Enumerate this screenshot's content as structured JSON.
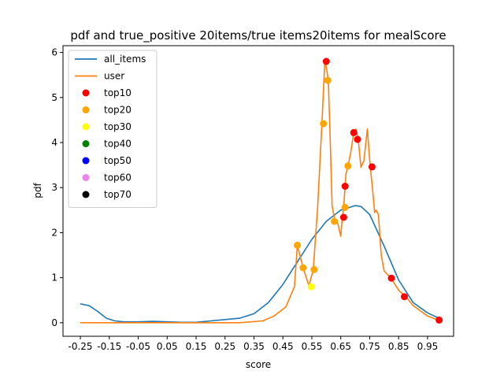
{
  "chart_data": {
    "type": "line",
    "title": "pdf and true_positive 20items/true items20items for mealScore",
    "xlabel": "score",
    "ylabel": "pdf",
    "xlim": [
      -0.31,
      1.04
    ],
    "ylim": [
      -0.3,
      6.15
    ],
    "xticks": [
      "-0.25",
      "-0.15",
      "-0.05",
      "0.05",
      "0.15",
      "0.25",
      "0.35",
      "0.45",
      "0.55",
      "0.65",
      "0.75",
      "0.85",
      "0.95"
    ],
    "yticks": [
      "0",
      "1",
      "2",
      "3",
      "4",
      "5",
      "6"
    ],
    "grid": false,
    "legend_position": "top-left",
    "series": [
      {
        "name": "all_items",
        "color": "#1f77b4",
        "x": [
          -0.25,
          -0.22,
          -0.19,
          -0.16,
          -0.13,
          -0.1,
          -0.05,
          0.0,
          0.05,
          0.1,
          0.15,
          0.2,
          0.25,
          0.3,
          0.35,
          0.4,
          0.45,
          0.5,
          0.55,
          0.6,
          0.65,
          0.7,
          0.72,
          0.75,
          0.8,
          0.85,
          0.9,
          0.95,
          0.99
        ],
        "y": [
          0.42,
          0.38,
          0.25,
          0.1,
          0.04,
          0.02,
          0.02,
          0.03,
          0.02,
          0.01,
          0.01,
          0.04,
          0.07,
          0.1,
          0.2,
          0.45,
          0.85,
          1.35,
          1.85,
          2.25,
          2.5,
          2.6,
          2.58,
          2.4,
          1.7,
          0.95,
          0.45,
          0.22,
          0.1
        ]
      },
      {
        "name": "user",
        "color": "#ff7f0e",
        "x": [
          -0.25,
          -0.1,
          0.0,
          0.1,
          0.2,
          0.3,
          0.38,
          0.42,
          0.46,
          0.49,
          0.5,
          0.52,
          0.54,
          0.555,
          0.57,
          0.585,
          0.595,
          0.602,
          0.607,
          0.613,
          0.62,
          0.63,
          0.64,
          0.65,
          0.655,
          0.66,
          0.668,
          0.675,
          0.685,
          0.695,
          0.702,
          0.71,
          0.72,
          0.73,
          0.742,
          0.752,
          0.758,
          0.767,
          0.772,
          0.78,
          0.79,
          0.8,
          0.825,
          0.85,
          0.875,
          0.9,
          0.95,
          0.99
        ],
        "y": [
          0.0,
          0.0,
          0.0,
          0.0,
          0.0,
          0.0,
          0.04,
          0.15,
          0.35,
          0.8,
          1.72,
          1.22,
          0.82,
          1.18,
          2.55,
          4.42,
          5.82,
          5.6,
          5.38,
          4.2,
          2.6,
          2.25,
          2.2,
          1.92,
          2.3,
          2.55,
          3.3,
          3.48,
          3.8,
          4.22,
          4.3,
          4.08,
          3.45,
          3.6,
          4.3,
          3.45,
          3.1,
          2.45,
          2.5,
          2.4,
          1.5,
          1.15,
          0.98,
          0.72,
          0.58,
          0.38,
          0.15,
          0.05
        ]
      }
    ],
    "scatter_series": [
      {
        "name": "top10",
        "color": "#ff0000",
        "points": [
          [
            0.6,
            5.8
          ],
          [
            0.695,
            4.22
          ],
          [
            0.708,
            4.07
          ],
          [
            0.66,
            2.34
          ],
          [
            0.665,
            3.03
          ],
          [
            0.758,
            3.46
          ],
          [
            0.825,
            0.99
          ],
          [
            0.87,
            0.58
          ],
          [
            0.99,
            0.06
          ]
        ]
      },
      {
        "name": "top20",
        "color": "#ffa500",
        "points": [
          [
            0.5,
            1.72
          ],
          [
            0.52,
            1.22
          ],
          [
            0.558,
            1.18
          ],
          [
            0.59,
            4.42
          ],
          [
            0.605,
            5.38
          ],
          [
            0.628,
            2.25
          ],
          [
            0.665,
            2.56
          ],
          [
            0.675,
            3.48
          ]
        ]
      },
      {
        "name": "top30",
        "color": "#ffff00",
        "points": [
          [
            0.548,
            0.8
          ]
        ]
      },
      {
        "name": "top40",
        "color": "#008000",
        "points": []
      },
      {
        "name": "top50",
        "color": "#0000ff",
        "points": []
      },
      {
        "name": "top60",
        "color": "#ee82ee",
        "points": []
      },
      {
        "name": "top70",
        "color": "#000000",
        "points": []
      }
    ]
  }
}
